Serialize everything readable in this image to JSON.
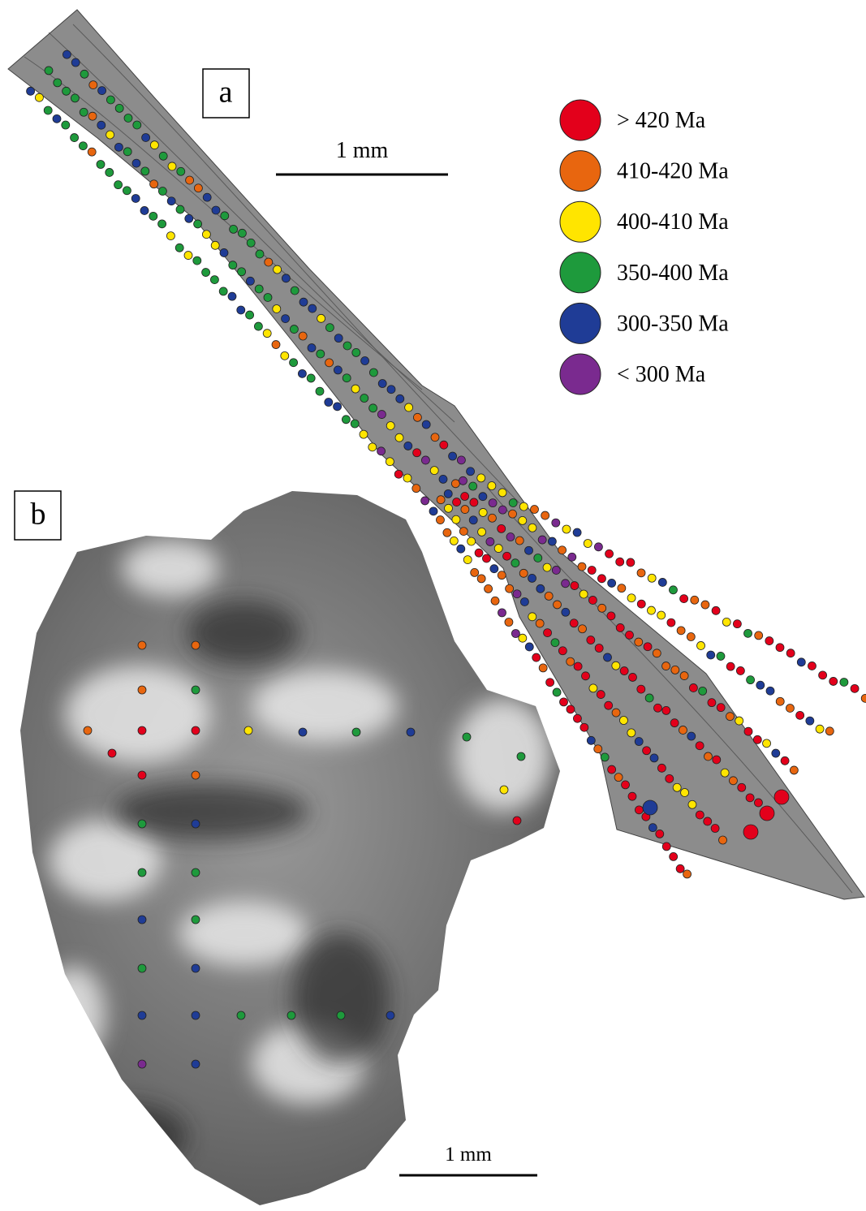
{
  "panel_a": {
    "label": "a",
    "scale": "1 mm"
  },
  "panel_b": {
    "label": "b",
    "scale": "1 mm"
  },
  "legend": [
    {
      "label": "> 420 Ma",
      "color": "#e3001b"
    },
    {
      "label": "410-420 Ma",
      "color": "#e8660f"
    },
    {
      "label": "400-410 Ma",
      "color": "#ffe500"
    },
    {
      "label": "350-400 Ma",
      "color": "#1e9a3c"
    },
    {
      "label": "300-350 Ma",
      "color": "#1f3c96"
    },
    {
      "label": "< 300 Ma",
      "color": "#7a2a8f"
    }
  ]
}
